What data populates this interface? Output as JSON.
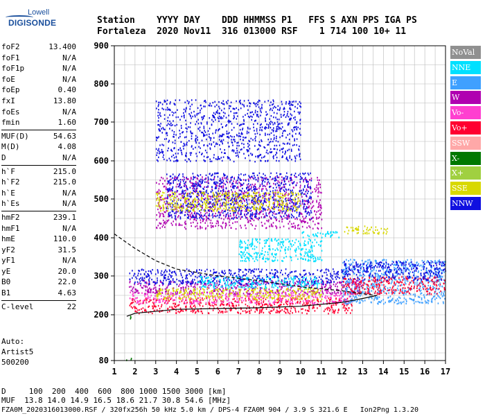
{
  "logo": {
    "top": "Lowell",
    "bottom": "DIGISONDE"
  },
  "header": {
    "line1": "Station    YYYY DAY    DDD HHMMSS P1   FFS S AXN PPS IGA PS",
    "line2": "Fortaleza  2020 Nov11  316 013000 RSF    1 714 100 10+ 11"
  },
  "params": [
    [
      {
        "k": "foF2",
        "v": "13.400"
      },
      {
        "k": "foF1",
        "v": "N/A"
      },
      {
        "k": "foF1p",
        "v": "N/A"
      },
      {
        "k": "foE",
        "v": "N/A"
      },
      {
        "k": "foEp",
        "v": "0.40"
      },
      {
        "k": "fxI",
        "v": "13.80"
      },
      {
        "k": "foEs",
        "v": "N/A"
      },
      {
        "k": "fmin",
        "v": "1.60"
      }
    ],
    [
      {
        "k": "MUF(D)",
        "v": "54.63"
      },
      {
        "k": "M(D)",
        "v": "4.08"
      },
      {
        "k": "D",
        "v": "N/A"
      }
    ],
    [
      {
        "k": "h`F",
        "v": "215.0"
      },
      {
        "k": "h`F2",
        "v": "215.0"
      },
      {
        "k": "h`E",
        "v": "N/A"
      },
      {
        "k": "h`Es",
        "v": "N/A"
      }
    ],
    [
      {
        "k": "hmF2",
        "v": "239.1"
      },
      {
        "k": "hmF1",
        "v": "N/A"
      },
      {
        "k": "hmE",
        "v": "110.0"
      },
      {
        "k": "yF2",
        "v": "31.5"
      },
      {
        "k": "yF1",
        "v": "N/A"
      },
      {
        "k": "yE",
        "v": "20.0"
      },
      {
        "k": "B0",
        "v": "22.0"
      },
      {
        "k": "B1",
        "v": "4.63"
      }
    ],
    [
      {
        "k": "C-level",
        "v": "22"
      }
    ]
  ],
  "auto": {
    "l1": "Auto:",
    "l2": "Artist5",
    "l3": "500200"
  },
  "bottom": {
    "d_line": "D     100  200  400  600  800 1000 1500 3000 [km]",
    "muf_line": "MUF  13.8 14.0 14.9 16.5 18.6 21.7 30.8 54.6 [MHz]",
    "file_line": "FZA0M_2020316013000.RSF / 320fx256h 50 kHz 5.0 km / DPS-4 FZA0M 904 / 3.9 S 321.6 E   Ion2Png 1.3.20"
  },
  "legend": [
    {
      "label": "NoVal",
      "color": "#909090"
    },
    {
      "label": "NNE",
      "color": "#00e0ff"
    },
    {
      "label": "E",
      "color": "#3fa0ff"
    },
    {
      "label": "W",
      "color": "#b000b0"
    },
    {
      "label": "Vo-",
      "color": "#ff3fd0"
    },
    {
      "label": "Vo+",
      "color": "#ff0030"
    },
    {
      "label": "SSW",
      "color": "#ffa8a8"
    },
    {
      "label": "X-",
      "color": "#007800"
    },
    {
      "label": "X+",
      "color": "#a0d040"
    },
    {
      "label": "SSE",
      "color": "#d8d800"
    },
    {
      "label": "NNW",
      "color": "#1010e0"
    }
  ],
  "chart_data": {
    "type": "scatter",
    "xlim": [
      1,
      17
    ],
    "ylim": [
      80,
      900
    ],
    "x_ticks": [
      "1",
      "2",
      "3",
      "4",
      "5",
      "6",
      "7",
      "8",
      "9",
      "10",
      "11",
      "12",
      "13",
      "14",
      "15",
      "16",
      "17"
    ],
    "y_ticks": [
      "80",
      "200",
      "300",
      "400",
      "500",
      "600",
      "700",
      "800",
      "900"
    ],
    "grid": true,
    "trace_regions": [
      {
        "x": [
          1.5,
          1.9
        ],
        "y": [
          192,
          200
        ],
        "color": "#007800"
      },
      {
        "x": [
          1.5,
          1.9
        ],
        "y": [
          82,
          90
        ],
        "color": "#007800"
      },
      {
        "x": [
          1.7,
          12.5
        ],
        "y": [
          205,
          245
        ],
        "color": "#ff0030"
      },
      {
        "x": [
          1.7,
          12.5
        ],
        "y": [
          230,
          260
        ],
        "color": "#ff3fd0"
      },
      {
        "x": [
          1.7,
          13
        ],
        "y": [
          255,
          290
        ],
        "color": "#b000b0"
      },
      {
        "x": [
          1.7,
          12
        ],
        "y": [
          280,
          320
        ],
        "color": "#1010e0"
      },
      {
        "x": [
          3,
          11
        ],
        "y": [
          240,
          270
        ],
        "color": "#d8d800"
      },
      {
        "x": [
          5,
          11
        ],
        "y": [
          270,
          300
        ],
        "color": "#00e0ff"
      },
      {
        "x": [
          12,
          17
        ],
        "y": [
          230,
          345
        ],
        "color": "#3fa0ff"
      },
      {
        "x": [
          12,
          17
        ],
        "y": [
          255,
          300
        ],
        "color": "#ff0030"
      },
      {
        "x": [
          12,
          17
        ],
        "y": [
          290,
          340
        ],
        "color": "#1010e0"
      },
      {
        "x": [
          3,
          11
        ],
        "y": [
          425,
          560
        ],
        "color": "#b000b0"
      },
      {
        "x": [
          3.5,
          10.5
        ],
        "y": [
          450,
          570
        ],
        "color": "#1010e0"
      },
      {
        "x": [
          3,
          10
        ],
        "y": [
          470,
          520
        ],
        "color": "#d8d800"
      },
      {
        "x": [
          10,
          12
        ],
        "y": [
          402,
          418
        ],
        "color": "#00e0ff"
      },
      {
        "x": [
          12,
          14.2
        ],
        "y": [
          412,
          432
        ],
        "color": "#d8d800"
      },
      {
        "x": [
          3,
          10
        ],
        "y": [
          600,
          760
        ],
        "color": "#1010e0"
      },
      {
        "x": [
          7,
          11
        ],
        "y": [
          340,
          400
        ],
        "color": "#00e0ff"
      }
    ],
    "curves": [
      {
        "style": "solid",
        "points": [
          [
            1.6,
            196
          ],
          [
            2,
            204
          ],
          [
            4,
            214
          ],
          [
            6,
            216
          ],
          [
            8,
            218
          ],
          [
            10,
            222
          ],
          [
            12,
            232
          ],
          [
            13,
            242
          ],
          [
            13.7,
            250
          ]
        ]
      },
      {
        "style": "dashed",
        "points": [
          [
            1,
            410
          ],
          [
            2,
            372
          ],
          [
            3,
            340
          ],
          [
            4,
            318
          ],
          [
            6,
            300
          ],
          [
            8,
            288
          ],
          [
            10,
            272
          ],
          [
            12,
            262
          ],
          [
            13.6,
            250
          ]
        ]
      }
    ]
  }
}
